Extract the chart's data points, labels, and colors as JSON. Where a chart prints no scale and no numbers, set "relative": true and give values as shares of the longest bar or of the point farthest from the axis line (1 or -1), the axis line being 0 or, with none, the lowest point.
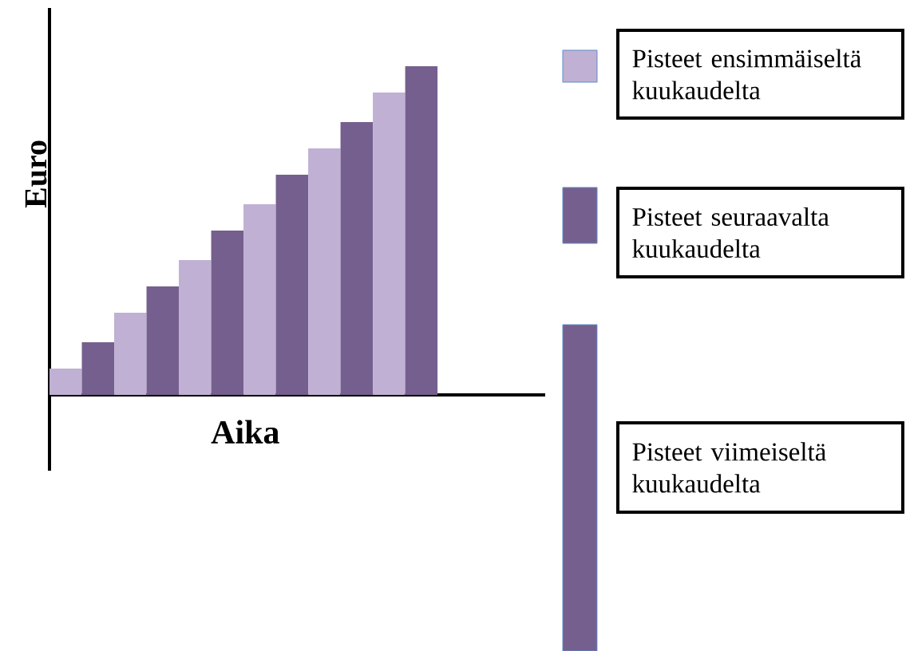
{
  "chart_data": {
    "type": "bar",
    "relative": true,
    "xlabel": "Aika",
    "ylabel": "Euro",
    "categories": [
      null,
      null,
      null,
      null,
      null,
      null,
      null,
      null,
      null,
      null,
      null,
      null
    ],
    "values": [
      0.08,
      0.16,
      0.25,
      0.33,
      0.41,
      0.5,
      0.58,
      0.67,
      0.75,
      0.83,
      0.92,
      1
    ],
    "colors": [
      "#c0b0d3",
      "#755f8e",
      "#c0b0d3",
      "#755f8e",
      "#c0b0d3",
      "#755f8e",
      "#c0b0d3",
      "#755f8e",
      "#c0b0d3",
      "#755f8e",
      "#c0b0d3",
      "#755f8e"
    ],
    "annotations": [
      "Pisteet ensimmäiseltä kuukaudelta",
      "Pisteet seuraavalta kuukaudelta",
      "Pisteet viimeiseltä kuukaudelta"
    ]
  }
}
